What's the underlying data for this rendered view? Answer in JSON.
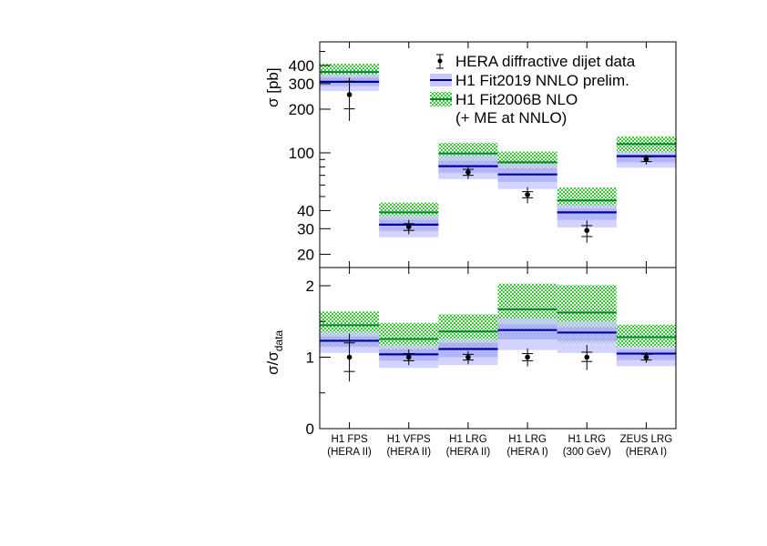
{
  "chart_data": [
    {
      "type": "bar",
      "panel": "top",
      "scale": "log",
      "ylabel": "σ [pb]",
      "ylim": [
        16,
        580
      ],
      "yticks": [
        20,
        30,
        40,
        100,
        200,
        300,
        400
      ],
      "categories": [
        [
          "H1 FPS",
          "(HERA II)"
        ],
        [
          "H1 VFPS",
          "(HERA II)"
        ],
        [
          "H1 LRG",
          "(HERA II)"
        ],
        [
          "H1 LRG",
          "(HERA I)"
        ],
        [
          "H1 LRG",
          "(300 GeV)"
        ],
        [
          "ZEUS LRG",
          "(HERA I)"
        ]
      ],
      "data": {
        "name": "HERA diffractive dijet data",
        "values": [
          252,
          30.9,
          73.5,
          51.5,
          29.2,
          90.4
        ],
        "err_total": [
          [
            166,
            330
          ],
          [
            27.5,
            34.5
          ],
          [
            66,
            80
          ],
          [
            44.9,
            58
          ],
          [
            24.0,
            34.2
          ],
          [
            83,
            97
          ]
        ],
        "err_stat": [
          [
            201,
            311
          ],
          [
            29.2,
            32.5
          ],
          [
            70,
            77
          ],
          [
            49,
            54
          ],
          [
            26.5,
            31.5
          ],
          [
            87,
            94
          ]
        ]
      },
      "fit2019": {
        "name": "H1 Fit2019 NNLO prelim.",
        "values": [
          309,
          32,
          80.9,
          71,
          38.9,
          94.8
        ],
        "band": [
          [
            267,
            348
          ],
          [
            26.2,
            37.1
          ],
          [
            66,
            96
          ],
          [
            56.4,
            84
          ],
          [
            30.6,
            43.9
          ],
          [
            79,
            102
          ]
        ],
        "inner_band": [
          [
            288,
            330
          ],
          [
            29,
            34.5
          ],
          [
            73,
            88
          ],
          [
            63,
            78
          ],
          [
            34.5,
            41.5
          ],
          [
            86,
            98
          ]
        ]
      },
      "fit2006": {
        "name": "H1 Fit2006B NLO",
        "name2": "(+ ME at NNLO)",
        "values": [
          361,
          38.9,
          99,
          86,
          47,
          115
        ],
        "band": [
          [
            295,
            411
          ],
          [
            33.7,
            45.4
          ],
          [
            86,
            117
          ],
          [
            76,
            102
          ],
          [
            41.9,
            57.7
          ],
          [
            100,
            130
          ]
        ]
      }
    },
    {
      "type": "bar",
      "panel": "bottom",
      "scale": "linear",
      "ylabel": "σ/σ",
      "ylabel_sub": "data",
      "ylim": [
        0,
        2.25
      ],
      "yticks": [
        0,
        1,
        2
      ],
      "data": {
        "values": [
          1,
          1,
          1,
          1,
          1,
          1
        ],
        "err_total": [
          [
            0.66,
            1.33
          ],
          [
            0.89,
            1.11
          ],
          [
            0.9,
            1.085
          ],
          [
            0.87,
            1.12
          ],
          [
            0.82,
            1.17
          ],
          [
            0.92,
            1.07
          ]
        ],
        "err_stat": [
          [
            0.8,
            1.2
          ],
          [
            0.95,
            1.05
          ],
          [
            0.96,
            1.04
          ],
          [
            0.95,
            1.05
          ],
          [
            0.94,
            1.07
          ],
          [
            0.96,
            1.04
          ]
        ]
      },
      "fit2019": {
        "values": [
          1.23,
          1.04,
          1.115,
          1.38,
          1.345,
          1.05
        ],
        "band": [
          [
            1.06,
            1.35
          ],
          [
            0.85,
            1.17
          ],
          [
            0.89,
            1.25
          ],
          [
            1.1,
            1.545
          ],
          [
            1.06,
            1.5
          ],
          [
            0.875,
            1.145
          ]
        ],
        "inner_band": [
          [
            1.15,
            1.29
          ],
          [
            0.95,
            1.11
          ],
          [
            1.0,
            1.2
          ],
          [
            1.25,
            1.46
          ],
          [
            1.23,
            1.42
          ],
          [
            0.96,
            1.11
          ]
        ]
      },
      "fit2006": {
        "values": [
          1.447,
          1.255,
          1.36,
          1.67,
          1.625,
          1.28
        ],
        "band": [
          [
            1.14,
            1.64
          ],
          [
            1.03,
            1.48
          ],
          [
            1.14,
            1.6
          ],
          [
            1.25,
            2.03
          ],
          [
            1.2,
            2.01
          ],
          [
            1.14,
            1.455
          ]
        ]
      }
    }
  ],
  "colors": {
    "fit2019_line": "#0000a0",
    "fit2019_band": "#c8c8ff",
    "fit2019_inner": "#9d9df5",
    "fit2006_line": "#008030",
    "fit2006_hatch": "#33cc33"
  }
}
